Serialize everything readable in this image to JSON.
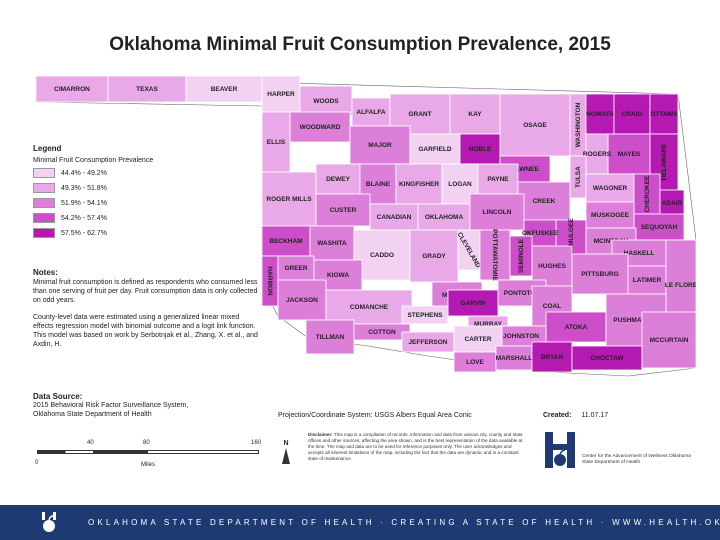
{
  "title": "Oklahoma Minimal Fruit Consumption Prevalence, 2015",
  "colors": {
    "class1": "#f3d2f1",
    "class2": "#e9a8e8",
    "class3": "#dc7fd9",
    "class4": "#cc4ec9",
    "class5": "#b41ab2",
    "footer": "#1f3a73"
  },
  "legend": {
    "title": "Legend",
    "subtitle": "Minimal Fruit Consumption Prevalence",
    "items": [
      {
        "label": "44.4% - 49.2%",
        "color": "#f3d2f1"
      },
      {
        "label": "49.3% - 51.8%",
        "color": "#e9a8e8"
      },
      {
        "label": "51.9% - 54.1%",
        "color": "#dc7fd9"
      },
      {
        "label": "54.2% - 57.4%",
        "color": "#cc4ec9"
      },
      {
        "label": "57.5% - 62.7%",
        "color": "#b41ab2"
      }
    ]
  },
  "notes": {
    "heading": "Notes:",
    "p1": "Minimal fruit consumption is defined as respondents who consumed less than one serving of fruit per day. Fruit consumption data is only collected on odd years.",
    "p2": "County-level data were estimated using a generalized linear mixed effects regression model with binomial outcome and a logit link function. This model was based on work by Serbotnjak et al., Zhang, X. et al., and Axdin, H."
  },
  "source": {
    "heading": "Data Source:",
    "line1": "2015 Behavioral Risk Factor Surveillance System,",
    "line2": "Oklahoma State Department of Health"
  },
  "projection": "Projection/Coordinate System: USGS Albers Equal Area Conic",
  "created": {
    "label": "Created:",
    "value": "11.07.17"
  },
  "scale": {
    "ticks": [
      "0",
      "40",
      "80",
      "160"
    ],
    "unit": "Miles"
  },
  "north": "N",
  "disclaimer": {
    "label": "Disclaimer:",
    "text": "This map is a compilation of records, information and data from various city, county and state offices and other sources, affecting the area shown, and is the best representation of the data available at the time. The map and data are to be used for reference purposes only. The user acknowledges and accepts all inherent limitations of the map, including the fact that the data are dynamic and in a constant state of maintenance."
  },
  "center": "Center for the Advancement of Wellness Oklahoma State Department of Health",
  "footer": "OKLAHOMA STATE DEPARTMENT OF HEALTH · CREATING A STATE OF HEALTH · WWW.HEALTH.OK.GOV",
  "counties": [
    {
      "name": "CIMARRON",
      "cls": 2
    },
    {
      "name": "TEXAS",
      "cls": 2
    },
    {
      "name": "BEAVER",
      "cls": 1
    },
    {
      "name": "HARPER",
      "cls": 1
    },
    {
      "name": "WOODS",
      "cls": 2
    },
    {
      "name": "ALFALFA",
      "cls": 2
    },
    {
      "name": "GRANT",
      "cls": 2
    },
    {
      "name": "KAY",
      "cls": 2
    },
    {
      "name": "OSAGE",
      "cls": 2
    },
    {
      "name": "WASHINGTON",
      "cls": 2
    },
    {
      "name": "NOWATA",
      "cls": 5
    },
    {
      "name": "CRAIG",
      "cls": 5
    },
    {
      "name": "OTTAWA",
      "cls": 5
    },
    {
      "name": "DELAWARE",
      "cls": 5
    },
    {
      "name": "MAYES",
      "cls": 4
    },
    {
      "name": "ROGERS",
      "cls": 2
    },
    {
      "name": "TULSA",
      "cls": 2
    },
    {
      "name": "WAGONER",
      "cls": 2
    },
    {
      "name": "CHEROKEE",
      "cls": 4
    },
    {
      "name": "ADAIR",
      "cls": 5
    },
    {
      "name": "SEQUOYAH",
      "cls": 4
    },
    {
      "name": "MUSKOGEE",
      "cls": 3
    },
    {
      "name": "WOODWARD",
      "cls": 3
    },
    {
      "name": "MAJOR",
      "cls": 3
    },
    {
      "name": "GARFIELD",
      "cls": 1
    },
    {
      "name": "NOBLE",
      "cls": 5
    },
    {
      "name": "PAWNEE",
      "cls": 4
    },
    {
      "name": "ELLIS",
      "cls": 2
    },
    {
      "name": "DEWEY",
      "cls": 2
    },
    {
      "name": "BLAINE",
      "cls": 3
    },
    {
      "name": "KINGFISHER",
      "cls": 2
    },
    {
      "name": "LOGAN",
      "cls": 1
    },
    {
      "name": "PAYNE",
      "cls": 2
    },
    {
      "name": "CREEK",
      "cls": 3
    },
    {
      "name": "OKMULGEE",
      "cls": 4
    },
    {
      "name": "ROGER MILLS",
      "cls": 2
    },
    {
      "name": "CUSTER",
      "cls": 3
    },
    {
      "name": "CANADIAN",
      "cls": 2
    },
    {
      "name": "OKLAHOMA",
      "cls": 2
    },
    {
      "name": "LINCOLN",
      "cls": 3
    },
    {
      "name": "OKFUSKEE",
      "cls": 4
    },
    {
      "name": "MCINTOSH",
      "cls": 3
    },
    {
      "name": "HASKELL",
      "cls": 3
    },
    {
      "name": "BECKHAM",
      "cls": 4
    },
    {
      "name": "WASHITA",
      "cls": 3
    },
    {
      "name": "CADDO",
      "cls": 1
    },
    {
      "name": "GRADY",
      "cls": 2
    },
    {
      "name": "CLEVELAND",
      "cls": 1
    },
    {
      "name": "POTTAWATOMIE",
      "cls": 3
    },
    {
      "name": "SEMINOLE",
      "cls": 4
    },
    {
      "name": "HUGHES",
      "cls": 3
    },
    {
      "name": "PITTSBURG",
      "cls": 3
    },
    {
      "name": "LATIMER",
      "cls": 3
    },
    {
      "name": "LE FLORE",
      "cls": 3
    },
    {
      "name": "HARMON",
      "cls": 4
    },
    {
      "name": "GREER",
      "cls": 3
    },
    {
      "name": "KIOWA",
      "cls": 3
    },
    {
      "name": "MCCLAIN",
      "cls": 3
    },
    {
      "name": "GARVIN",
      "cls": 5
    },
    {
      "name": "PONTOTOC",
      "cls": 3
    },
    {
      "name": "COAL",
      "cls": 3
    },
    {
      "name": "ATOKA",
      "cls": 4
    },
    {
      "name": "PUSHMATAHA",
      "cls": 3
    },
    {
      "name": "JACKSON",
      "cls": 3
    },
    {
      "name": "COMANCHE",
      "cls": 2
    },
    {
      "name": "STEPHENS",
      "cls": 1
    },
    {
      "name": "MURRAY",
      "cls": 2
    },
    {
      "name": "JOHNSTON",
      "cls": 3
    },
    {
      "name": "TILLMAN",
      "cls": 3
    },
    {
      "name": "COTTON",
      "cls": 3
    },
    {
      "name": "JEFFERSON",
      "cls": 2
    },
    {
      "name": "CARTER",
      "cls": 1
    },
    {
      "name": "LOVE",
      "cls": 3
    },
    {
      "name": "MARSHALL",
      "cls": 3
    },
    {
      "name": "BRYAN",
      "cls": 5
    },
    {
      "name": "CHOCTAW",
      "cls": 5
    },
    {
      "name": "MCCURTAIN",
      "cls": 3
    }
  ]
}
